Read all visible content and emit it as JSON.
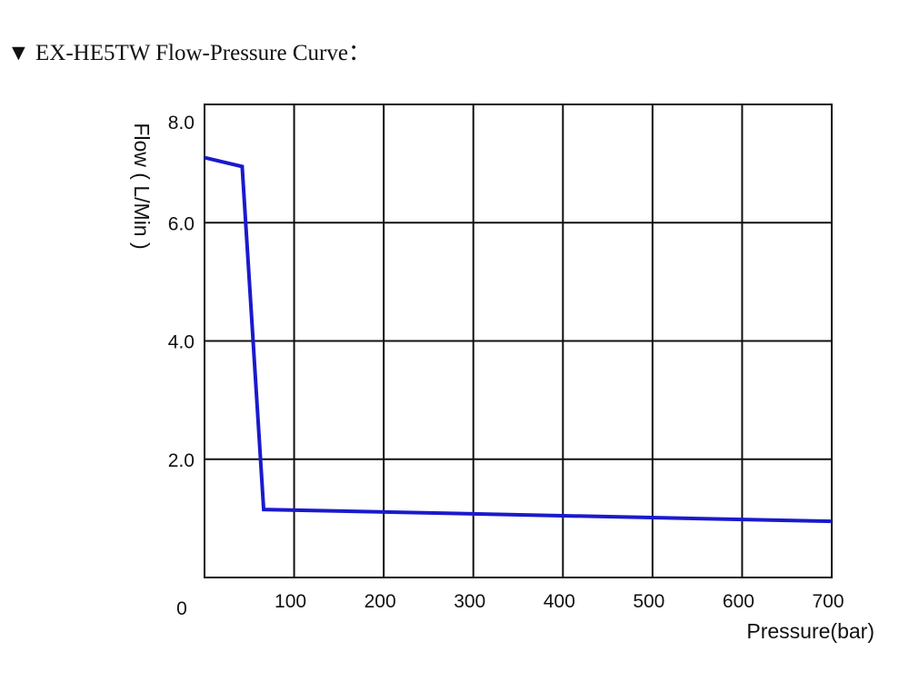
{
  "header": {
    "marker": "▼",
    "title": "EX-HE5TW Flow-Pressure Curve："
  },
  "chart_data": {
    "type": "line",
    "title": "EX-HE5TW Flow-Pressure Curve",
    "xlabel": "Pressure(bar)",
    "ylabel": "Flow ( L/Min )",
    "xlim": [
      0,
      700
    ],
    "ylim": [
      0,
      8
    ],
    "x_ticks": [
      "0",
      "100",
      "200",
      "300",
      "400",
      "500",
      "600",
      "700"
    ],
    "x_tick_values": [
      0,
      100,
      200,
      300,
      400,
      500,
      600,
      700
    ],
    "y_ticks": [
      "2.0",
      "4.0",
      "6.0",
      "8.0"
    ],
    "y_tick_values": [
      2,
      4,
      6,
      8
    ],
    "grid": true,
    "series": [
      {
        "name": "Flow",
        "color": "#1a1acc",
        "x": [
          0,
          42,
          66,
          700
        ],
        "y": [
          7.1,
          6.95,
          1.15,
          0.95
        ]
      }
    ]
  }
}
